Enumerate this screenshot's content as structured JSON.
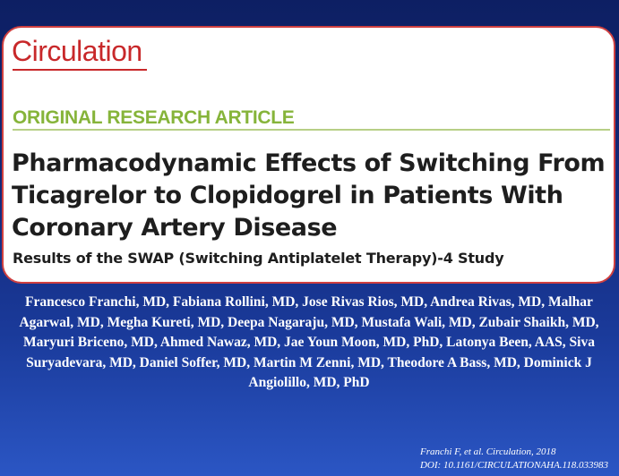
{
  "journal": {
    "name": "Circulation"
  },
  "article": {
    "type": "ORIGINAL RESEARCH ARTICLE",
    "title": "Pharmacodynamic Effects of Switching From Ticagrelor to Clopidogrel in Patients With Coronary Artery Disease",
    "subtitle": "Results of the SWAP (Switching Antiplatelet Therapy)-4 Study",
    "authors": "Francesco Franchi, MD, Fabiana Rollini, MD, Jose Rivas Rios, MD, Andrea Rivas, MD, Malhar Agarwal, MD, Megha Kureti, MD, Deepa Nagaraju, MD, Mustafa Wali, MD, Zubair Shaikh, MD, Maryuri Briceno, MD, Ahmed Nawaz, MD, Jae Youn Moon, MD, PhD, Latonya Been, AAS, Siva Suryadevara, MD, Daniel Soffer, MD, Martin M Zenni, MD, Theodore A Bass, MD, Dominick J Angiolillo, MD, PhD"
  },
  "citation": {
    "reference": "Franchi F, et al. Circulation, 2018",
    "doi": "DOI: 10.1161/CIRCULATIONAHA.118.033983"
  },
  "colors": {
    "background_top": "#0d1f63",
    "background_bottom": "#2b56c4",
    "journal_red": "#c8282a",
    "article_type_green": "#86b43a",
    "card_border": "#d04040"
  }
}
